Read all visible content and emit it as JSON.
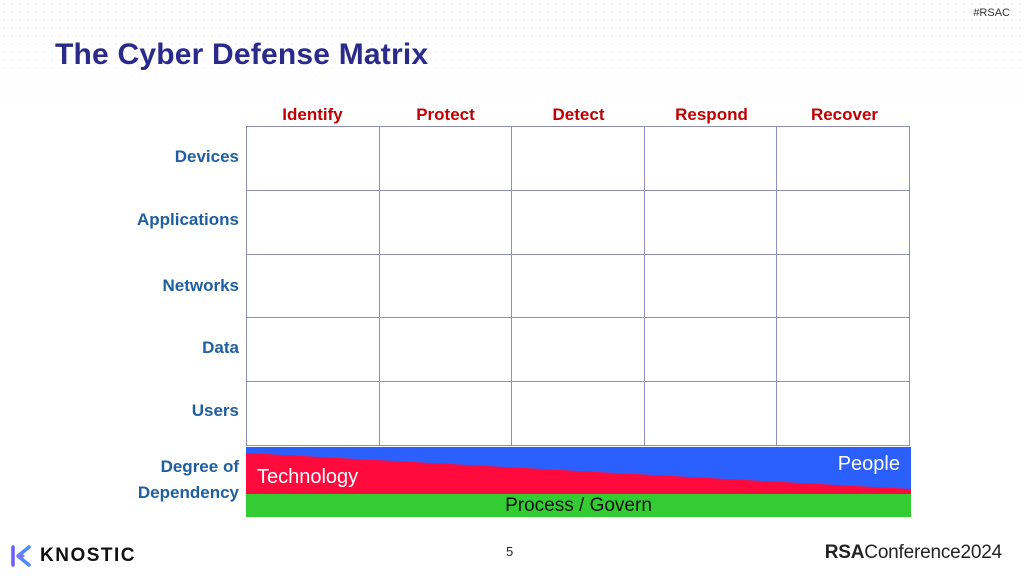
{
  "hashtag": "#RSAC",
  "title": "The Cyber Defense Matrix",
  "columns": [
    "Identify",
    "Protect",
    "Detect",
    "Respond",
    "Recover"
  ],
  "rows": [
    "Devices",
    "Applications",
    "Networks",
    "Data",
    "Users"
  ],
  "dependency": {
    "label_line1": "Degree of",
    "label_line2": "Dependency",
    "technology": "Technology",
    "people": "People",
    "process": "Process / Govern",
    "colors": {
      "technology": "#ff0a3c",
      "people": "#2b60ff",
      "process": "#33cc33"
    }
  },
  "footer": {
    "brand": "KNOSTIC",
    "page_number": "5",
    "conference_bold": "RSA",
    "conference": "Conference",
    "year": "2024"
  }
}
